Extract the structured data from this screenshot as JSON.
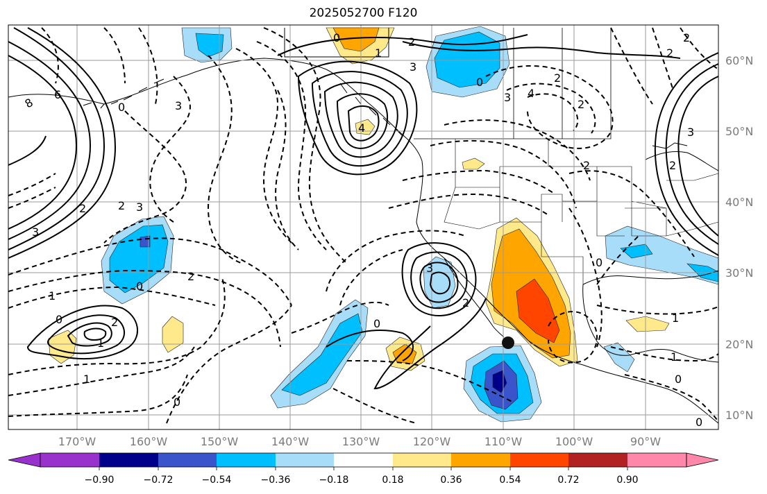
{
  "title": "2025052700 F120",
  "map": {
    "lon_range": [
      -180,
      -80
    ],
    "lat_range": [
      8,
      65
    ],
    "lat_ticks": [
      "10°N",
      "20°N",
      "30°N",
      "40°N",
      "50°N",
      "60°N"
    ],
    "lon_ticks": [
      "170°W",
      "160°W",
      "150°W",
      "140°W",
      "130°W",
      "120°W",
      "110°W",
      "100°W",
      "90°W"
    ],
    "grid": true,
    "marker": {
      "label": "point",
      "lon": -110,
      "lat": 20.2
    },
    "contour_labels": {
      "solid": [
        "6",
        "8",
        "3",
        "2",
        "1",
        "3",
        "4",
        "3",
        "3",
        "2",
        "1",
        "0"
      ],
      "dashed": [
        "0",
        "-2",
        "-3",
        "-1",
        "-2",
        "-3",
        "-4",
        "-2",
        "-1",
        "0",
        "-1",
        "-2",
        "-1",
        "0",
        "-1",
        "-2",
        "-3",
        "-1",
        "0",
        "-1",
        "-2"
      ]
    }
  },
  "colorbar": {
    "ticks": [
      "−0.90",
      "−0.72",
      "−0.54",
      "−0.36",
      "−0.18",
      "0.18",
      "0.36",
      "0.54",
      "0.72",
      "0.90"
    ],
    "colors": [
      "#9932cc",
      "#00008b",
      "#3a55cc",
      "#00bfff",
      "#a8ddfa",
      "#ffffff",
      "#ffe98a",
      "#ffa500",
      "#ff4500",
      "#b22222",
      "#ff88aa"
    ]
  }
}
